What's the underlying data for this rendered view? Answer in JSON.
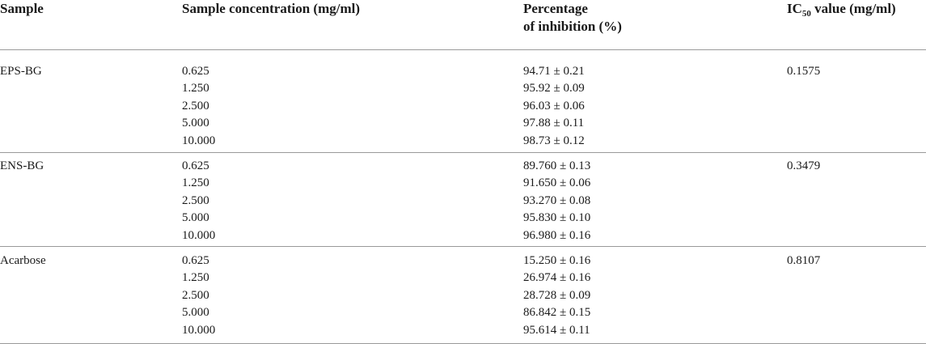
{
  "table": {
    "headers": {
      "sample": "Sample",
      "concentration": "Sample concentration (mg/ml)",
      "percentage_line1": "Percentage",
      "percentage_line2": "of inhibition (%)",
      "ic50_prefix": "IC",
      "ic50_sub": "50",
      "ic50_suffix": " value (mg/ml)"
    },
    "groups": [
      {
        "sample": "EPS-BG",
        "concentrations": [
          "0.625",
          "1.250",
          "2.500",
          "5.000",
          "10.000"
        ],
        "inhibition": [
          "94.71 ± 0.21",
          "95.92 ± 0.09",
          "96.03 ± 0.06",
          "97.88 ± 0.11",
          "98.73 ± 0.12"
        ],
        "ic50": "0.1575"
      },
      {
        "sample": "ENS-BG",
        "concentrations": [
          "0.625",
          "1.250",
          "2.500",
          "5.000",
          "10.000"
        ],
        "inhibition": [
          "89.760 ± 0.13",
          "91.650 ± 0.06",
          "93.270 ± 0.08",
          "95.830 ± 0.10",
          "96.980 ± 0.16"
        ],
        "ic50": "0.3479"
      },
      {
        "sample": "Acarbose",
        "concentrations": [
          "0.625",
          "1.250",
          "2.500",
          "5.000",
          "10.000"
        ],
        "inhibition": [
          "15.250 ± 0.16",
          "26.974 ± 0.16",
          "28.728 ± 0.09",
          "86.842 ± 0.15",
          "95.614 ± 0.11"
        ],
        "ic50": "0.8107"
      }
    ]
  }
}
